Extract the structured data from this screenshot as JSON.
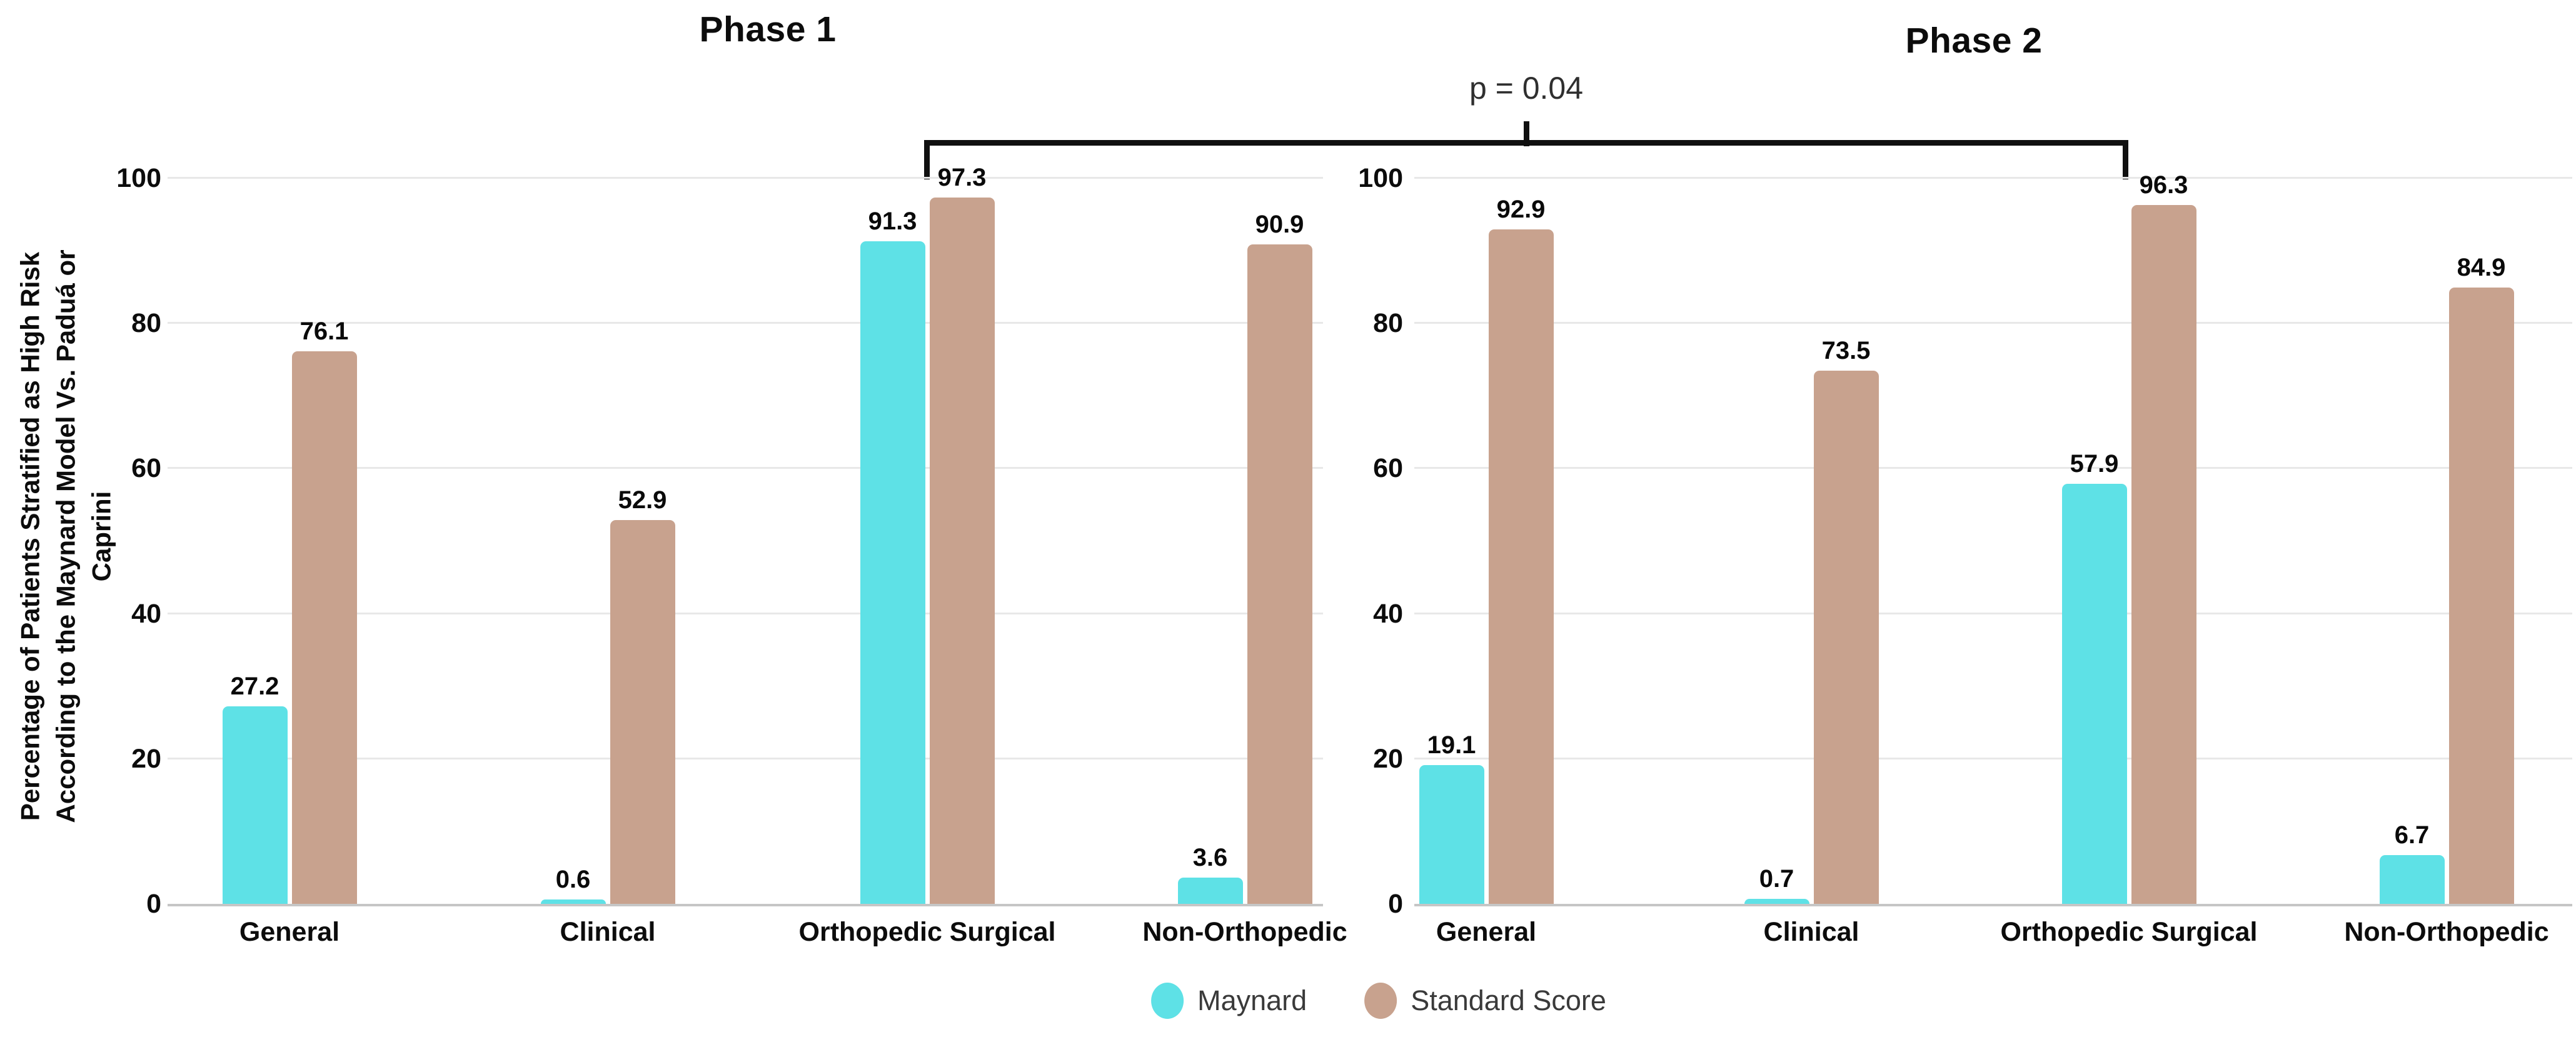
{
  "chart_data": {
    "type": "bar",
    "categories": [
      "General",
      "Clinical",
      "Orthopedic Surgical",
      "Non-Orthopedic"
    ],
    "yticks": [
      "0",
      "20",
      "40",
      "60",
      "80",
      "100"
    ],
    "ylim": [
      0,
      100
    ],
    "grid": true,
    "legend_position": "bottom-center",
    "ylabel": "Percentage of Patients Stratified as High Risk According to the Maynard Model Vs. Paduá or Caprini",
    "ylabel_lines": [
      "Percentage of Patients Stratified as High Risk",
      "According to the Maynard Model Vs. Paduá or",
      "Caprini"
    ],
    "panels": [
      {
        "title": "Phase 1",
        "series": [
          {
            "name": "Maynard",
            "color": "#5EE1E6",
            "values": [
              27.2,
              0.6,
              91.3,
              3.6
            ]
          },
          {
            "name": "Standard Score",
            "color": "#C8A28E",
            "values": [
              76.1,
              52.9,
              97.3,
              90.9
            ]
          }
        ]
      },
      {
        "title": "Phase 2",
        "series": [
          {
            "name": "Maynard",
            "color": "#5EE1E6",
            "values": [
              19.1,
              0.7,
              57.9,
              6.7
            ]
          },
          {
            "name": "Standard Score",
            "color": "#C8A28E",
            "values": [
              92.9,
              73.5,
              96.3,
              84.9
            ]
          }
        ]
      }
    ],
    "annotation": {
      "text": "p = 0.04",
      "connects": [
        "Phase 1: Orthopedic Surgical",
        "Phase 2: Orthopedic Surgical"
      ]
    },
    "colors": {
      "maynard": "#5EE1E6",
      "standard_score": "#C8A28E",
      "gridline": "#e8e8e8",
      "axis_line": "#c6c6c6",
      "bracket": "#101010"
    }
  }
}
